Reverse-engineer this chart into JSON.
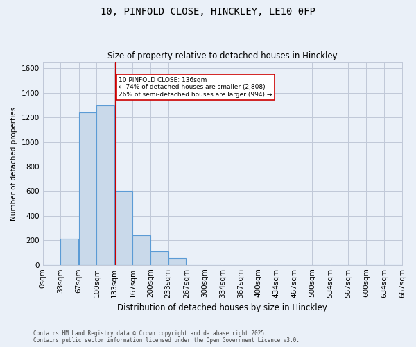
{
  "title1": "10, PINFOLD CLOSE, HINCKLEY, LE10 0FP",
  "title2": "Size of property relative to detached houses in Hinckley",
  "xlabel": "Distribution of detached houses by size in Hinckley",
  "ylabel": "Number of detached properties",
  "bar_edges": [
    0,
    33,
    67,
    100,
    133,
    167,
    200,
    233,
    267,
    300,
    334,
    367,
    400,
    434,
    467,
    500,
    534,
    567,
    600,
    634,
    667
  ],
  "bar_values": [
    0,
    215,
    1240,
    1300,
    600,
    240,
    110,
    55,
    0,
    0,
    0,
    0,
    0,
    0,
    0,
    0,
    0,
    0,
    0,
    0
  ],
  "bar_color": "#c9d9ea",
  "bar_edge_color": "#5b9bd5",
  "vline_x": 136,
  "vline_color": "#cc0000",
  "annotation_text": "10 PINFOLD CLOSE: 136sqm\n← 74% of detached houses are smaller (2,808)\n26% of semi-detached houses are larger (994) →",
  "annotation_box_color": "#ffffff",
  "annotation_box_edge": "#cc0000",
  "ylim": [
    0,
    1650
  ],
  "yticks": [
    0,
    200,
    400,
    600,
    800,
    1000,
    1200,
    1400,
    1600
  ],
  "grid_color": "#c0c8d8",
  "footer": "Contains HM Land Registry data © Crown copyright and database right 2025.\nContains public sector information licensed under the Open Government Licence v3.0.",
  "tick_labels": [
    "0sqm",
    "33sqm",
    "67sqm",
    "100sqm",
    "133sqm",
    "167sqm",
    "200sqm",
    "233sqm",
    "267sqm",
    "300sqm",
    "334sqm",
    "367sqm",
    "400sqm",
    "434sqm",
    "467sqm",
    "500sqm",
    "534sqm",
    "567sqm",
    "600sqm",
    "634sqm",
    "667sqm"
  ],
  "bg_color": "#eaf0f8"
}
